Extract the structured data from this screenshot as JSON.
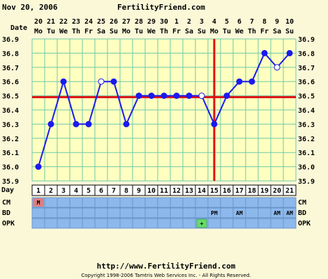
{
  "header": {
    "date": "Nov 20, 2006",
    "brand": "FertilityFriend.com"
  },
  "footer": {
    "url": "http://www.FertilityFriend.com",
    "copyright": "Copyright 1998-2006 Tamtris Web Services Inc. - All Rights Reserved."
  },
  "colors": {
    "background": "#fbf8d8",
    "plot_background": "#ffffc0",
    "grid": "#6ec8aa",
    "line": "#1a1aee",
    "marker_line": "#dd1111",
    "band": "#8db8ec",
    "cm_box": "#e07e7e",
    "opk_box": "#66dd66"
  },
  "chart_data": {
    "type": "line",
    "title": "",
    "xlabel": "Day",
    "ylabel": "",
    "ylim": [
      35.9,
      36.9
    ],
    "yticks": [
      "35.9",
      "36.0",
      "36.1",
      "36.2",
      "36.3",
      "36.4",
      "36.5",
      "36.6",
      "36.7",
      "36.8",
      "36.9"
    ],
    "date_row_label": "Date",
    "cycle_days": [
      "1",
      "2",
      "3",
      "4",
      "5",
      "6",
      "7",
      "8",
      "9",
      "10",
      "11",
      "12",
      "13",
      "14",
      "15",
      "16",
      "17",
      "18",
      "19",
      "20",
      "21"
    ],
    "dates": [
      "20",
      "21",
      "22",
      "23",
      "24",
      "25",
      "26",
      "27",
      "28",
      "29",
      "30",
      "1",
      "2",
      "3",
      "4",
      "5",
      "6",
      "7",
      "8",
      "9",
      "10"
    ],
    "weekdays": [
      "Mo",
      "Tu",
      "We",
      "Th",
      "Fr",
      "Sa",
      "Su",
      "Mo",
      "Tu",
      "We",
      "Th",
      "Fr",
      "Sa",
      "Su",
      "Mo",
      "Tu",
      "We",
      "Th",
      "Fr",
      "Sa",
      "Su"
    ],
    "series": [
      {
        "values": [
          36.0,
          36.3,
          36.6,
          36.3,
          36.3,
          36.6,
          36.6,
          36.3,
          36.5,
          36.5,
          36.5,
          36.5,
          36.5,
          36.5,
          36.3,
          36.5,
          36.6,
          36.6,
          36.8,
          36.7,
          36.8
        ],
        "open_points": [
          6,
          14,
          20
        ]
      }
    ],
    "coverline": 36.49,
    "ovulation_day": 15,
    "grid": true,
    "rows": [
      {
        "label": "CM",
        "entries": [
          {
            "day": 1,
            "text": "M"
          }
        ]
      },
      {
        "label": "BD",
        "entries": [
          {
            "day": 15,
            "text": "PM"
          },
          {
            "day": 17,
            "text": "AM"
          },
          {
            "day": 20,
            "text": "AM"
          },
          {
            "day": 21,
            "text": "AM"
          }
        ]
      },
      {
        "label": "OPK",
        "entries": [
          {
            "day": 14,
            "text": "+"
          }
        ]
      }
    ]
  }
}
